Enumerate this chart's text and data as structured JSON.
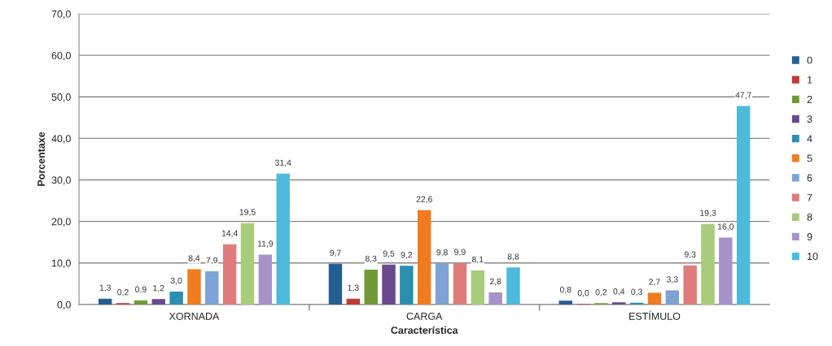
{
  "chart_data": {
    "type": "bar",
    "xlabel": "Característica",
    "ylabel": "Porcentaxe",
    "categories": [
      "XORNADA",
      "CARGA",
      "ESTÍMULO"
    ],
    "ylim": [
      0,
      70
    ],
    "yticks": [
      {
        "value": 0,
        "label": "0,0"
      },
      {
        "value": 10,
        "label": "10,0"
      },
      {
        "value": 20,
        "label": "20,0"
      },
      {
        "value": 30,
        "label": "30,0"
      },
      {
        "value": 40,
        "label": "40,0"
      },
      {
        "value": 50,
        "label": "50,0"
      },
      {
        "value": 60,
        "label": "60,0"
      },
      {
        "value": 70,
        "label": "70,0"
      }
    ],
    "grid": "y",
    "legend": "right",
    "series": [
      {
        "name": "0",
        "color": "#255e91",
        "values": [
          1.3,
          9.7,
          0.8
        ],
        "value_labels": [
          "1,3",
          "9,7",
          "0,8"
        ]
      },
      {
        "name": "1",
        "color": "#be3b36",
        "values": [
          0.2,
          1.3,
          0.0
        ],
        "value_labels": [
          "0,2",
          "1,3",
          "0,0"
        ]
      },
      {
        "name": "2",
        "color": "#6f9a36",
        "values": [
          0.9,
          8.3,
          0.2
        ],
        "value_labels": [
          "0,9",
          "8,3",
          "0,2"
        ]
      },
      {
        "name": "3",
        "color": "#6a4a8c",
        "values": [
          1.2,
          9.5,
          0.4
        ],
        "value_labels": [
          "1,2",
          "9,5",
          "0,4"
        ]
      },
      {
        "name": "4",
        "color": "#2a8fb0",
        "values": [
          3.0,
          9.2,
          0.3
        ],
        "value_labels": [
          "3,0",
          "9,2",
          "0,3"
        ]
      },
      {
        "name": "5",
        "color": "#f07c1f",
        "values": [
          8.4,
          22.6,
          2.7
        ],
        "value_labels": [
          "8,4",
          "22,6",
          "2,7"
        ]
      },
      {
        "name": "6",
        "color": "#7ea1d6",
        "values": [
          7.9,
          9.8,
          3.3
        ],
        "value_labels": [
          "7,9",
          "9,8",
          "3,3"
        ]
      },
      {
        "name": "7",
        "color": "#e07b7b",
        "values": [
          14.4,
          9.9,
          9.3
        ],
        "value_labels": [
          "14,4",
          "9,9",
          "9,3"
        ]
      },
      {
        "name": "8",
        "color": "#a8cc7b",
        "values": [
          19.5,
          8.1,
          19.3
        ],
        "value_labels": [
          "19,5",
          "8,1",
          "19,3"
        ]
      },
      {
        "name": "9",
        "color": "#a593c7",
        "values": [
          11.9,
          2.8,
          16.0
        ],
        "value_labels": [
          "11,9",
          "2,8",
          "16,0"
        ]
      },
      {
        "name": "10",
        "color": "#4dbadc",
        "values": [
          31.4,
          8.8,
          47.7
        ],
        "value_labels": [
          "31,4",
          "8,8",
          "47,7"
        ]
      }
    ]
  }
}
